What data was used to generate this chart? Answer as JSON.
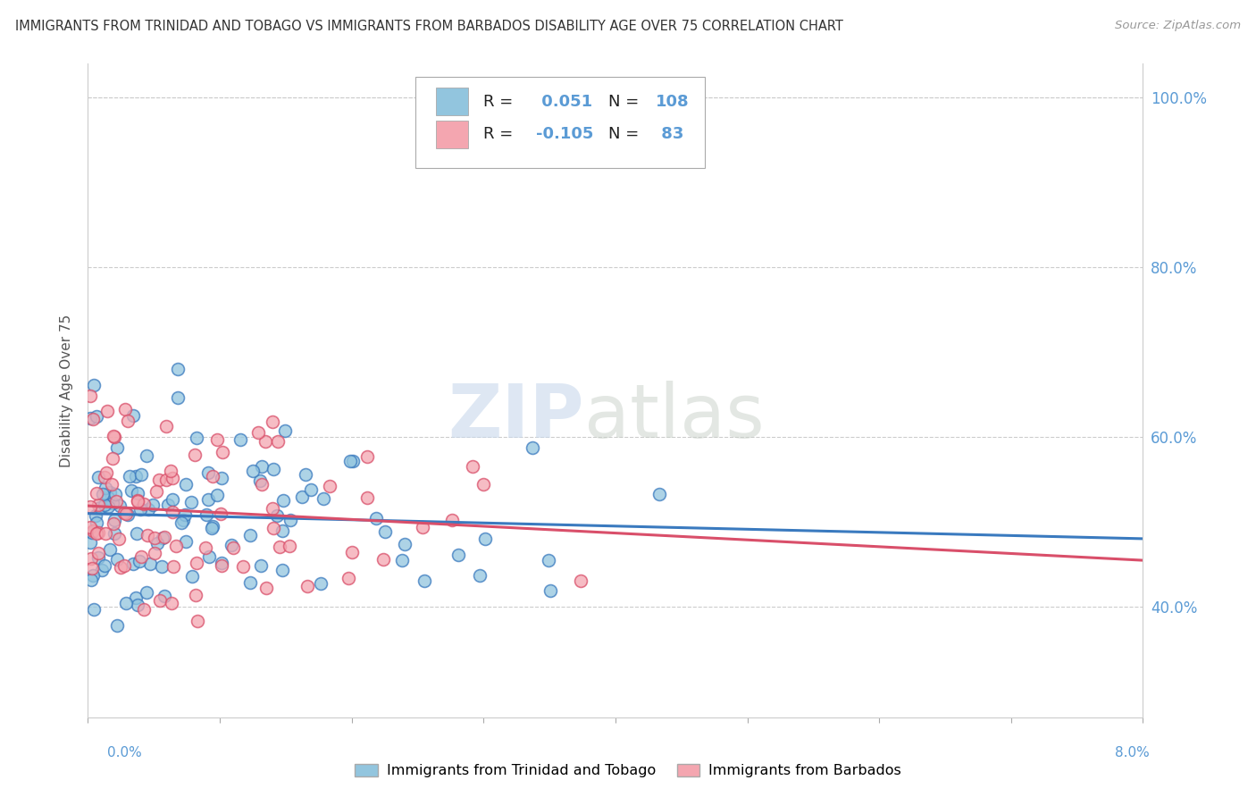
{
  "title": "IMMIGRANTS FROM TRINIDAD AND TOBAGO VS IMMIGRANTS FROM BARBADOS DISABILITY AGE OVER 75 CORRELATION CHART",
  "source": "Source: ZipAtlas.com",
  "ylabel": "Disability Age Over 75",
  "xmin": 0.0,
  "xmax": 0.08,
  "ymin": 0.27,
  "ymax": 1.04,
  "yticks": [
    0.4,
    0.6,
    0.8,
    1.0
  ],
  "ytick_labels": [
    "40.0%",
    "60.0%",
    "80.0%",
    "100.0%"
  ],
  "series1_color": "#92c5de",
  "series2_color": "#f4a6b0",
  "trend1_color": "#3a7abf",
  "trend2_color": "#d94f6a",
  "series1_label": "Immigrants from Trinidad and Tobago",
  "series2_label": "Immigrants from Barbados",
  "R1": 0.051,
  "N1": 108,
  "R2": -0.105,
  "N2": 83,
  "watermark": "ZIPatlas",
  "grid_color": "#cccccc",
  "title_color": "#333333",
  "source_color": "#999999",
  "axis_label_color": "#555555",
  "tick_label_color": "#5b9bd5"
}
